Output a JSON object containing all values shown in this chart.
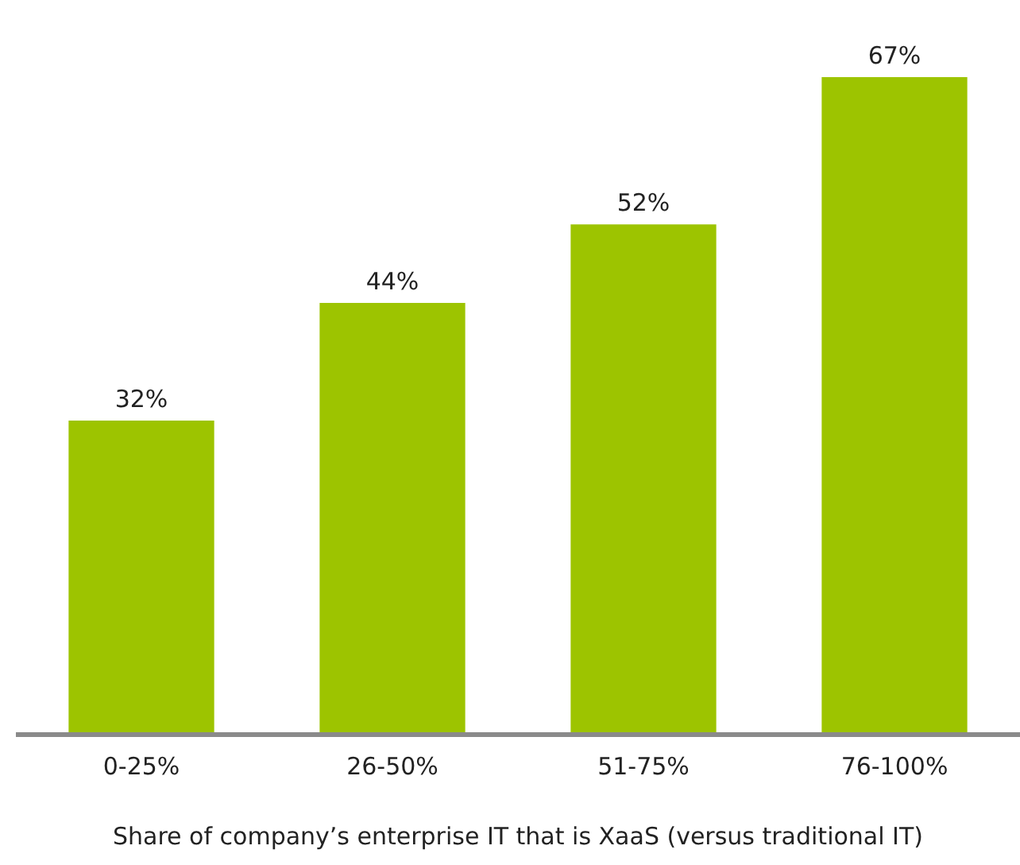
{
  "chart_data": {
    "type": "bar",
    "xlabel": "Share of company’s enterprise IT that is XaaS (versus traditional IT)",
    "categories": [
      "0-25%",
      "26-50%",
      "51-75%",
      "76-100%"
    ],
    "values": [
      32,
      44,
      52,
      67
    ],
    "value_labels": [
      "32%",
      "44%",
      "52%",
      "67%"
    ],
    "color": "#9dc400",
    "grid": false,
    "legend": false
  }
}
